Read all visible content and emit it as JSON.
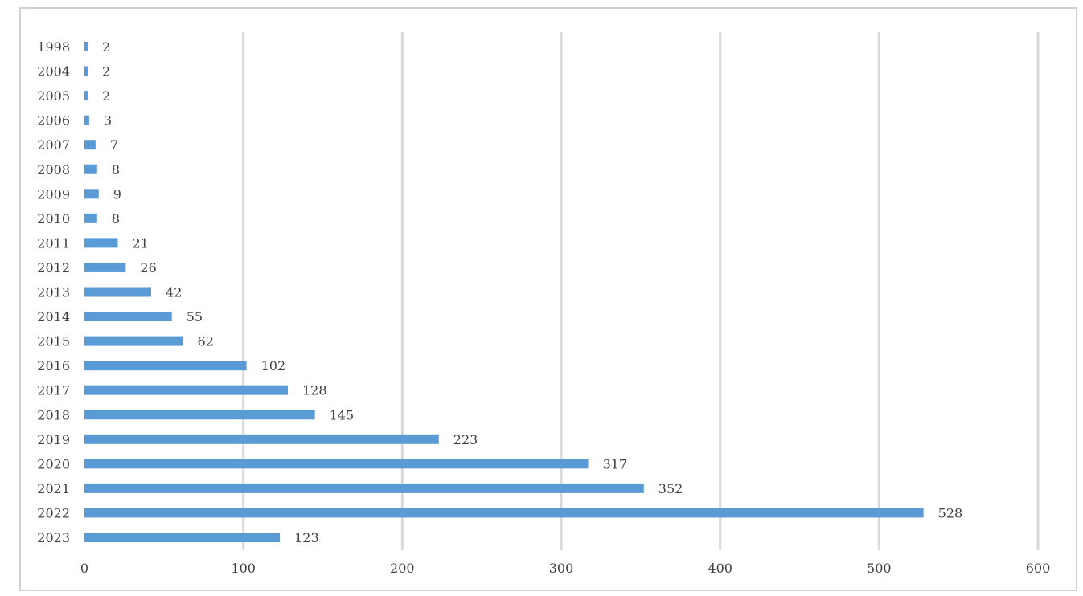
{
  "chart_data": {
    "type": "bar",
    "orientation": "horizontal",
    "categories": [
      "1998",
      "2004",
      "2005",
      "2006",
      "2007",
      "2008",
      "2009",
      "2010",
      "2011",
      "2012",
      "2013",
      "2014",
      "2015",
      "2016",
      "2017",
      "2018",
      "2019",
      "2020",
      "2021",
      "2022",
      "2023"
    ],
    "values": [
      2,
      2,
      2,
      3,
      7,
      8,
      9,
      8,
      21,
      26,
      42,
      55,
      62,
      102,
      128,
      145,
      223,
      317,
      352,
      528,
      123
    ],
    "x_ticks": [
      "0",
      "100",
      "200",
      "300",
      "400",
      "500",
      "600"
    ],
    "xlim": [
      0,
      600
    ],
    "title": "",
    "xlabel": "",
    "ylabel": "",
    "grid": true,
    "legend": "none",
    "bar_color": "#5b9bd5",
    "grid_color": "#d9d9d9"
  }
}
